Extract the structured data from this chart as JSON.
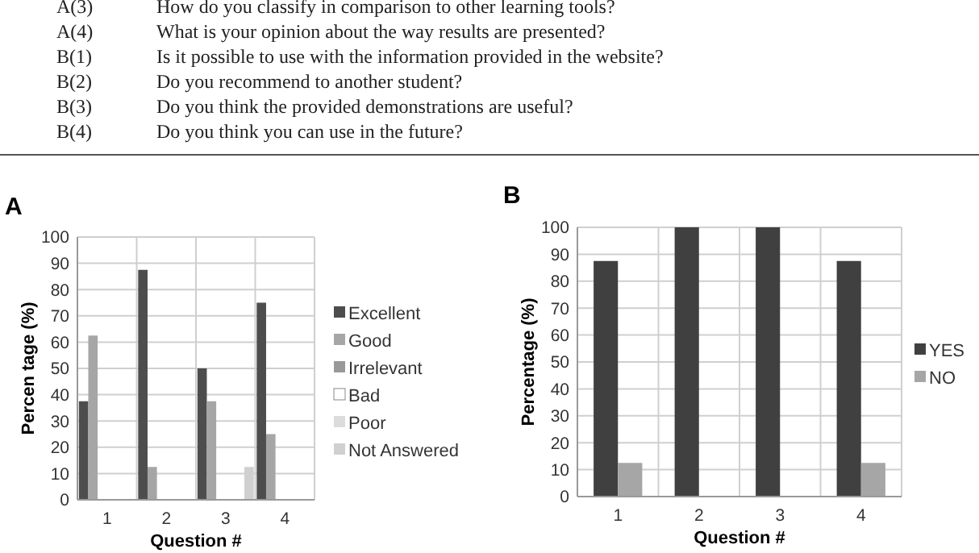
{
  "chart_data": [
    {
      "type": "other",
      "annotations": [
        "A(3) How do you classify in comparison to other learning tools?",
        "A(4) What is your opinion about the way results are presented?",
        "B(1) Is it possible to use with the information provided in the website?",
        "B(2) Do you recommend to another student?",
        "B(3) Do you think the provided demonstrations are useful?",
        "B(4) Do you think you can use in the future?"
      ]
    },
    {
      "type": "bar",
      "title": "A",
      "xlabel": "Question #",
      "ylabel": "Percen tage (%)",
      "categories": [
        "1",
        "2",
        "3",
        "4"
      ],
      "ylim": [
        0,
        100
      ],
      "yticks": [
        0,
        10,
        20,
        30,
        40,
        50,
        60,
        70,
        80,
        90,
        100
      ],
      "grid": true,
      "legend": "right",
      "series": [
        {
          "name": "Excellent",
          "color": "#4d4d4d",
          "values": [
            37.5,
            87.5,
            50,
            75
          ]
        },
        {
          "name": "Good",
          "color": "#a6a6a6",
          "values": [
            62.5,
            12.5,
            37.5,
            25
          ]
        },
        {
          "name": "Irrelevant",
          "color": "#999999",
          "values": [
            0,
            0,
            0,
            0
          ]
        },
        {
          "name": "Bad",
          "color": "#ffffff",
          "values": [
            0,
            0,
            0,
            0
          ]
        },
        {
          "name": "Poor",
          "color": "#dcdcdc",
          "values": [
            0,
            0,
            0,
            0
          ]
        },
        {
          "name": "Not Answered",
          "color": "#d0d0d0",
          "values": [
            0,
            0,
            12.5,
            0
          ]
        }
      ]
    },
    {
      "type": "bar",
      "title": "B",
      "xlabel": "Question #",
      "ylabel": "Percentage (%)",
      "categories": [
        "1",
        "2",
        "3",
        "4"
      ],
      "ylim": [
        0,
        100
      ],
      "yticks": [
        0,
        10,
        20,
        30,
        40,
        50,
        60,
        70,
        80,
        90,
        100
      ],
      "grid": true,
      "legend": "right",
      "series": [
        {
          "name": "YES",
          "color": "#404040",
          "values": [
            87.5,
            100,
            100,
            87.5
          ]
        },
        {
          "name": "NO",
          "color": "#a6a6a6",
          "values": [
            12.5,
            0,
            0,
            12.5
          ]
        }
      ]
    }
  ]
}
